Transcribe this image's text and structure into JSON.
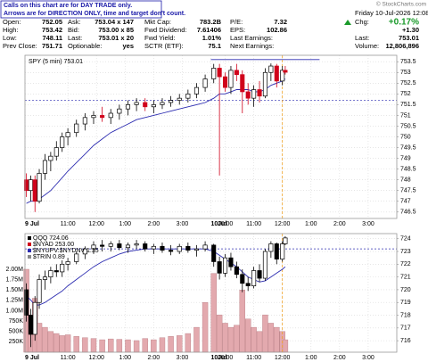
{
  "header": {
    "notes": [
      "Calls on this chart are for DAY TRADE only.",
      "Arrows are for DIRECTION ONLY, time and target don't count."
    ],
    "quote": [
      [
        {
          "label": "Open:",
          "value": "752.05"
        },
        {
          "label": "Ask:",
          "value": "753.04 x 147"
        },
        {
          "label": "Mkt Cap:",
          "value": "783.2B"
        },
        {
          "label": "P/E:",
          "value": "7.32"
        }
      ],
      [
        {
          "label": "High:",
          "value": "753.42"
        },
        {
          "label": "Bid:",
          "value": "753.00 x 85"
        },
        {
          "label": "Fwd Dividend:",
          "value": "7.61406"
        },
        {
          "label": "EPS:",
          "value": "102.86"
        }
      ],
      [
        {
          "label": "Low:",
          "value": "748.11"
        },
        {
          "label": "Last:",
          "value": "753.01 x 20"
        },
        {
          "label": "Fwd Yield:",
          "value": "1.01%"
        },
        {
          "label": "Last Earnings:",
          "value": ""
        }
      ],
      [
        {
          "label": "Prev Close:",
          "value": "751.71"
        },
        {
          "label": "Optionable:",
          "value": "yes"
        },
        {
          "label": "SCTR (ETF):",
          "value": "75.1"
        },
        {
          "label": "Next Earnings:",
          "value": ""
        }
      ]
    ],
    "watermark": "© StockCharts.com",
    "date": "Friday 10-Jul-2026 12:08 pm",
    "change_label": "Chg:",
    "change_pct": "+0.17%",
    "change": "+1.30",
    "last_label": "Last:",
    "last": "753.01",
    "volume_label": "Volume:",
    "volume": "12,806,896"
  },
  "chart_data": [
    {
      "type": "candlestick",
      "title": "SPY (5 min) 753.01",
      "up_color": "#000000",
      "down_color": "#d0021b",
      "grid": true,
      "x": [
        0.05,
        0.2,
        0.35,
        0.5,
        0.7,
        0.9,
        1.1,
        1.3,
        1.5,
        1.8,
        2.1,
        2.4,
        2.7,
        3.0,
        3.3,
        3.6,
        3.9,
        4.2,
        4.5,
        4.8,
        5.1,
        5.4,
        5.7,
        6.0,
        6.3,
        6.6,
        6.8,
        7.0,
        7.2,
        7.4,
        7.6,
        7.8,
        8.0,
        8.2,
        8.4,
        8.6,
        8.8,
        9.0,
        9.1
      ],
      "open": [
        748.0,
        747.5,
        748.0,
        747.0,
        748.3,
        748.9,
        749.1,
        749.5,
        750.0,
        750.2,
        750.6,
        750.9,
        751.0,
        750.9,
        751.1,
        751.3,
        751.5,
        751.6,
        751.4,
        751.5,
        751.6,
        751.7,
        751.8,
        752.0,
        752.3,
        752.7,
        753.2,
        752.8,
        752.3,
        753.1,
        752.9,
        752.1,
        751.8,
        752.2,
        751.9,
        753.0,
        753.3,
        752.6,
        753.1
      ],
      "high": [
        748.3,
        748.2,
        748.2,
        748.5,
        749.2,
        749.3,
        749.8,
        750.2,
        750.4,
        750.8,
        751.1,
        751.2,
        751.4,
        751.3,
        751.5,
        751.7,
        751.8,
        751.8,
        751.7,
        751.8,
        751.9,
        752.0,
        752.2,
        752.5,
        752.9,
        753.4,
        753.4,
        753.0,
        753.3,
        753.4,
        753.1,
        752.5,
        752.4,
        752.6,
        753.2,
        753.42,
        753.4,
        753.3,
        753.3
      ],
      "low": [
        747.2,
        747.0,
        746.5,
        746.9,
        748.0,
        748.4,
        748.9,
        749.3,
        749.6,
        750.0,
        750.3,
        750.6,
        750.7,
        750.6,
        750.8,
        751.0,
        751.2,
        751.2,
        751.1,
        751.3,
        751.4,
        751.5,
        751.6,
        751.8,
        752.1,
        752.5,
        748.2,
        752.1,
        752.0,
        752.6,
        751.1,
        751.5,
        751.4,
        751.6,
        751.8,
        752.6,
        752.3,
        752.4,
        752.9
      ],
      "close": [
        747.5,
        748.0,
        747.0,
        748.3,
        748.9,
        749.1,
        749.5,
        750.0,
        750.2,
        750.6,
        750.9,
        751.0,
        750.9,
        751.1,
        751.3,
        751.5,
        751.6,
        751.4,
        751.5,
        751.6,
        751.7,
        751.8,
        752.0,
        752.3,
        752.7,
        753.2,
        752.8,
        752.3,
        753.1,
        752.9,
        752.1,
        751.8,
        752.2,
        751.9,
        753.0,
        753.3,
        752.6,
        753.1,
        753.01
      ],
      "lines": [
        {
          "color": "#2b2bb0",
          "values": [
            746.9,
            747.0,
            747.0,
            747.1,
            747.3,
            747.5,
            747.8,
            748.1,
            748.4,
            748.8,
            749.2,
            749.6,
            749.9,
            750.2,
            750.4,
            750.6,
            750.8,
            750.9,
            751.0,
            751.1,
            751.2,
            751.3,
            751.4,
            751.5,
            751.6,
            751.8,
            752.0,
            752.0,
            752.1,
            752.2,
            752.2,
            752.2,
            752.1,
            752.1,
            752.2,
            752.4,
            752.5,
            752.6,
            752.7
          ]
        }
      ],
      "hline": 751.71,
      "hline_color": "#2b2bb0",
      "resistance": {
        "value": 753.6,
        "x": [
          6.5,
          10.3
        ],
        "color": "#2b2bb0"
      },
      "vline": 9.0,
      "vline_color": "#f0a020",
      "xlim": [
        0,
        13
      ],
      "ylim": [
        746.2,
        753.8
      ],
      "xticks": [
        {
          "value": 0,
          "label": "9 Jul"
        },
        {
          "value": 1.5,
          "label": "11:00"
        },
        {
          "value": 2.5,
          "label": "12:00"
        },
        {
          "value": 3.5,
          "label": "1:00"
        },
        {
          "value": 4.5,
          "label": "2:00"
        },
        {
          "value": 5.5,
          "label": "3:00"
        },
        {
          "value": 6.5,
          "label": "10Jul"
        },
        {
          "value": 7,
          "label": "10:00"
        },
        {
          "value": 8,
          "label": "11:00"
        },
        {
          "value": 9,
          "label": "12:00"
        },
        {
          "value": 10,
          "label": "1:00"
        },
        {
          "value": 11,
          "label": "2:00"
        },
        {
          "value": 12,
          "label": "3:00"
        }
      ],
      "yticks": [
        746.5,
        747,
        747.5,
        748,
        748.5,
        749,
        749.5,
        750,
        750.5,
        751,
        751.5,
        752,
        752.5,
        753,
        753.5
      ]
    },
    {
      "type": "candlestick",
      "legend": [
        "QQQ 724.06",
        "$NYAD 253.00",
        "$NYUPV:$NYDNV 1.35",
        "$TRIN 0.89"
      ],
      "legend_colors": [
        "#000000",
        "#d0021b",
        "#2b2bb0",
        "#888888"
      ],
      "up_color": "#000000",
      "down_color": "#000000",
      "grid": true,
      "x": [
        0.05,
        0.2,
        0.35,
        0.5,
        0.7,
        0.9,
        1.1,
        1.3,
        1.5,
        1.8,
        2.1,
        2.4,
        2.7,
        3.0,
        3.3,
        3.6,
        3.9,
        4.2,
        4.5,
        4.8,
        5.1,
        5.4,
        5.7,
        6.0,
        6.3,
        6.6,
        6.8,
        7.0,
        7.2,
        7.4,
        7.6,
        7.8,
        8.0,
        8.2,
        8.4,
        8.6,
        8.8,
        9.0,
        9.1
      ],
      "open": [
        720.0,
        718.0,
        716.5,
        719.0,
        720.8,
        721.0,
        721.5,
        721.4,
        722.0,
        722.2,
        722.8,
        723.2,
        723.5,
        723.4,
        723.6,
        723.3,
        723.5,
        723.6,
        723.2,
        723.4,
        723.1,
        723.0,
        723.4,
        723.1,
        723.2,
        723.5,
        722.2,
        721.3,
        722.5,
        721.8,
        721.2,
        720.5,
        720.3,
        721.5,
        720.9,
        723.0,
        723.6,
        722.4,
        723.6
      ],
      "high": [
        720.5,
        718.5,
        719.5,
        721.2,
        721.5,
        721.8,
        722.0,
        722.3,
        722.5,
        723.0,
        723.4,
        723.8,
        723.9,
        723.8,
        723.9,
        723.7,
        723.9,
        723.8,
        723.6,
        723.7,
        723.5,
        723.6,
        723.7,
        723.5,
        723.8,
        723.6,
        722.6,
        722.8,
        722.9,
        722.2,
        721.6,
        721.0,
        721.8,
        722.0,
        723.2,
        723.8,
        723.7,
        723.8,
        724.2
      ],
      "low": [
        717.5,
        715.5,
        716.0,
        718.5,
        720.0,
        720.5,
        721.0,
        721.0,
        721.5,
        722.0,
        722.4,
        722.8,
        723.0,
        723.0,
        723.1,
        722.9,
        723.2,
        723.0,
        722.8,
        722.9,
        722.7,
        722.8,
        722.9,
        722.6,
        723.0,
        721.8,
        720.8,
        721.0,
        721.5,
        720.9,
        719.8,
        719.9,
        720.1,
        720.6,
        720.7,
        722.5,
        722.0,
        722.2,
        723.5
      ],
      "close": [
        718.0,
        716.5,
        719.0,
        720.8,
        721.0,
        721.5,
        721.4,
        722.0,
        722.2,
        722.8,
        723.2,
        723.5,
        723.4,
        723.6,
        723.3,
        723.5,
        723.6,
        723.2,
        723.4,
        723.1,
        723.0,
        723.4,
        723.1,
        723.2,
        723.5,
        722.2,
        721.3,
        722.5,
        721.8,
        721.2,
        720.5,
        720.3,
        721.5,
        720.9,
        723.0,
        723.6,
        722.4,
        723.6,
        724.06
      ],
      "volume": [
        2000000,
        900000,
        1300000,
        700000,
        600000,
        500000,
        450000,
        400000,
        420000,
        380000,
        350000,
        330000,
        300000,
        320000,
        310000,
        300000,
        280000,
        330000,
        300000,
        350000,
        380000,
        400000,
        450000,
        600000,
        1200000,
        1900000,
        900000,
        700000,
        600000,
        650000,
        1500000,
        800000,
        600000,
        500000,
        900000,
        700000,
        600000,
        500000,
        300000
      ],
      "volume_color": "#e3a9ae",
      "vlim": [
        0,
        2860000
      ],
      "vticks": [
        {
          "value": 250000,
          "label": "250K"
        },
        {
          "value": 500000,
          "label": "500K"
        },
        {
          "value": 750000,
          "label": "750K"
        },
        {
          "value": 1000000,
          "label": "1.00M"
        },
        {
          "value": 1250000,
          "label": "1.25M"
        },
        {
          "value": 1500000,
          "label": "1.50M"
        },
        {
          "value": 1750000,
          "label": "1.75M"
        },
        {
          "value": 2000000,
          "label": "2.00M"
        }
      ],
      "lines": [
        {
          "color": "#2b2bb0",
          "values": [
            719.5,
            719.2,
            718.8,
            718.8,
            719.0,
            719.3,
            719.6,
            719.9,
            720.3,
            720.8,
            721.3,
            721.8,
            722.2,
            722.5,
            722.8,
            723.0,
            723.1,
            723.2,
            723.2,
            723.2,
            723.2,
            723.2,
            723.2,
            723.2,
            723.2,
            723.0,
            722.7,
            722.4,
            722.1,
            721.8,
            721.4,
            721.0,
            720.8,
            720.6,
            720.7,
            721.0,
            721.3,
            721.6,
            721.8
          ]
        }
      ],
      "hline": 723.2,
      "hline_color": "#2b2bb0",
      "vline": 9.0,
      "vline_color": "#f0a020",
      "xlim": [
        0,
        13
      ],
      "ylim": [
        715.1,
        724.4
      ],
      "xticks": [
        {
          "value": 0,
          "label": "9 Jul"
        },
        {
          "value": 1.5,
          "label": "11:00"
        },
        {
          "value": 2.5,
          "label": "12:00"
        },
        {
          "value": 3.5,
          "label": "1:00"
        },
        {
          "value": 4.5,
          "label": "2:00"
        },
        {
          "value": 5.5,
          "label": "3:00"
        },
        {
          "value": 6.5,
          "label": "10Jul"
        },
        {
          "value": 7,
          "label": "10:00"
        },
        {
          "value": 8,
          "label": "11:00"
        },
        {
          "value": 9,
          "label": "12:00"
        },
        {
          "value": 10,
          "label": "1:00"
        },
        {
          "value": 11,
          "label": "2:00"
        },
        {
          "value": 12,
          "label": "3:00"
        }
      ],
      "yticks": [
        716,
        717,
        718,
        719,
        720,
        721,
        722,
        723,
        724
      ]
    }
  ]
}
